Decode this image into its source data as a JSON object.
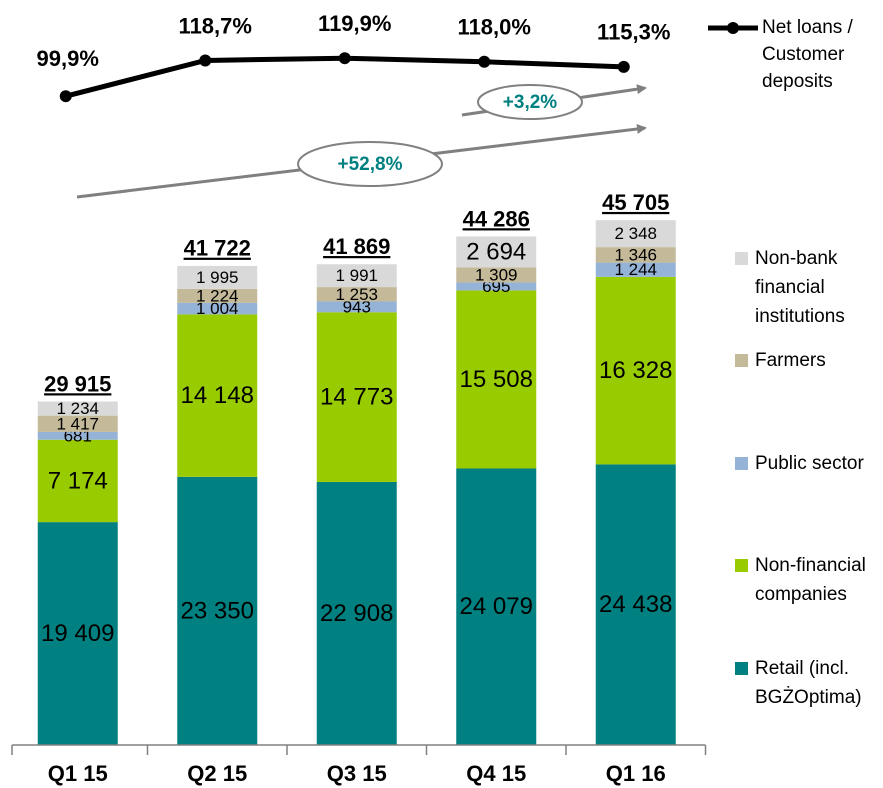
{
  "chart_data": {
    "type": "bar",
    "categories": [
      "Q1 15",
      "Q2 15",
      "Q3 15",
      "Q4 15",
      "Q1 16"
    ],
    "series": [
      {
        "name": "Retail (incl. BGŻOptima)",
        "color": "#008080",
        "values": [
          19409,
          23350,
          22908,
          24079,
          24438
        ],
        "value_labels": [
          "19 409",
          "23 350",
          "22 908",
          "24 079",
          "24 438"
        ]
      },
      {
        "name": "Non-financial companies",
        "color": "#99cc00",
        "values": [
          7174,
          14148,
          14773,
          15508,
          16328
        ],
        "value_labels": [
          "7 174",
          "14 148",
          "14 773",
          "15 508",
          "16 328"
        ]
      },
      {
        "name": "Public sector",
        "color": "#95b3d7",
        "values": [
          681,
          1004,
          943,
          695,
          1244
        ],
        "value_labels": [
          "681",
          "1 004",
          "943",
          "695",
          "1 244"
        ]
      },
      {
        "name": "Farmers",
        "color": "#c4b998",
        "values": [
          1417,
          1224,
          1253,
          1309,
          1346
        ],
        "value_labels": [
          "1 417",
          "1 224",
          "1 253",
          "1 309",
          "1 346"
        ]
      },
      {
        "name": "Non-bank financial institutions",
        "color": "#d9d9d9",
        "values": [
          1234,
          1995,
          1991,
          2694,
          2348
        ],
        "value_labels": [
          "1 234",
          "1 995",
          "1 991",
          "2 694",
          "2 348"
        ]
      },
      {
        "name": "Net loans / Customer deposits",
        "type": "line",
        "axis": "y2",
        "color": "#000000",
        "values": [
          99.9,
          118.7,
          119.9,
          118.0,
          115.3
        ],
        "value_labels": [
          "99,9%",
          "118,7%",
          "119,9%",
          "118,0%",
          "115,3%"
        ]
      }
    ],
    "totals": [
      29915,
      41722,
      41869,
      44286,
      45705
    ],
    "total_labels": [
      "29 915",
      "41 722",
      "41 869",
      "44 286",
      "45 705"
    ],
    "annotations": [
      "+3,2%",
      "+52,8%"
    ],
    "ylim": [
      0,
      60000
    ],
    "y2lim": [
      80,
      140
    ]
  }
}
